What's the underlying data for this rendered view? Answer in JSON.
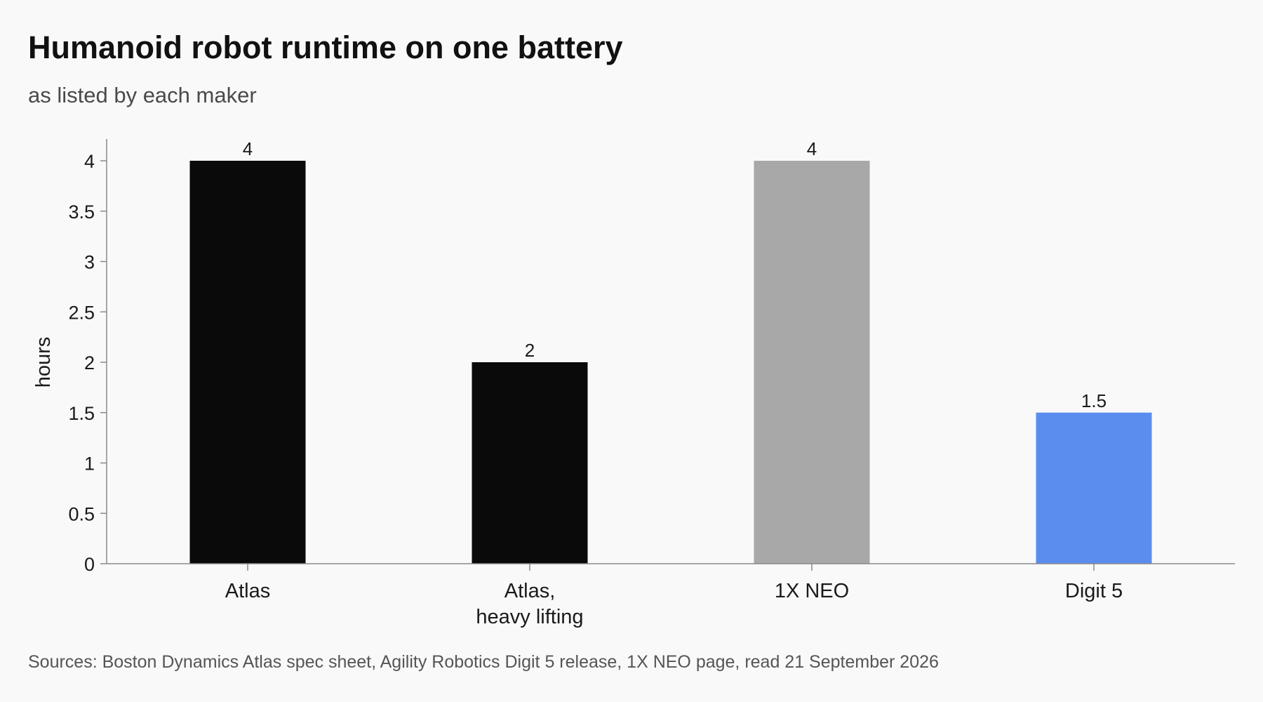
{
  "chart_data": {
    "type": "bar",
    "title": "Humanoid robot runtime on one battery",
    "subtitle": "as listed by each maker",
    "ylabel": "hours",
    "xlabel": "",
    "ylim": [
      0,
      4.2
    ],
    "yticks": [
      "0",
      "0.5",
      "1",
      "1.5",
      "2",
      "2.5",
      "3",
      "3.5",
      "4"
    ],
    "categories": [
      "Atlas",
      "Atlas,\nheavy lifting",
      "1X NEO",
      "Digit 5"
    ],
    "values": [
      4,
      2,
      4,
      1.5
    ],
    "value_labels": [
      "4",
      "2",
      "4",
      "1.5"
    ],
    "bar_colors": [
      "#0a0a0a",
      "#0a0a0a",
      "#a8a8a8",
      "#5b8def"
    ],
    "grid": false,
    "legend": "none",
    "source": "Sources: Boston Dynamics Atlas spec sheet, Agility Robotics Digit 5 release, 1X NEO page, read 21 September 2026"
  }
}
